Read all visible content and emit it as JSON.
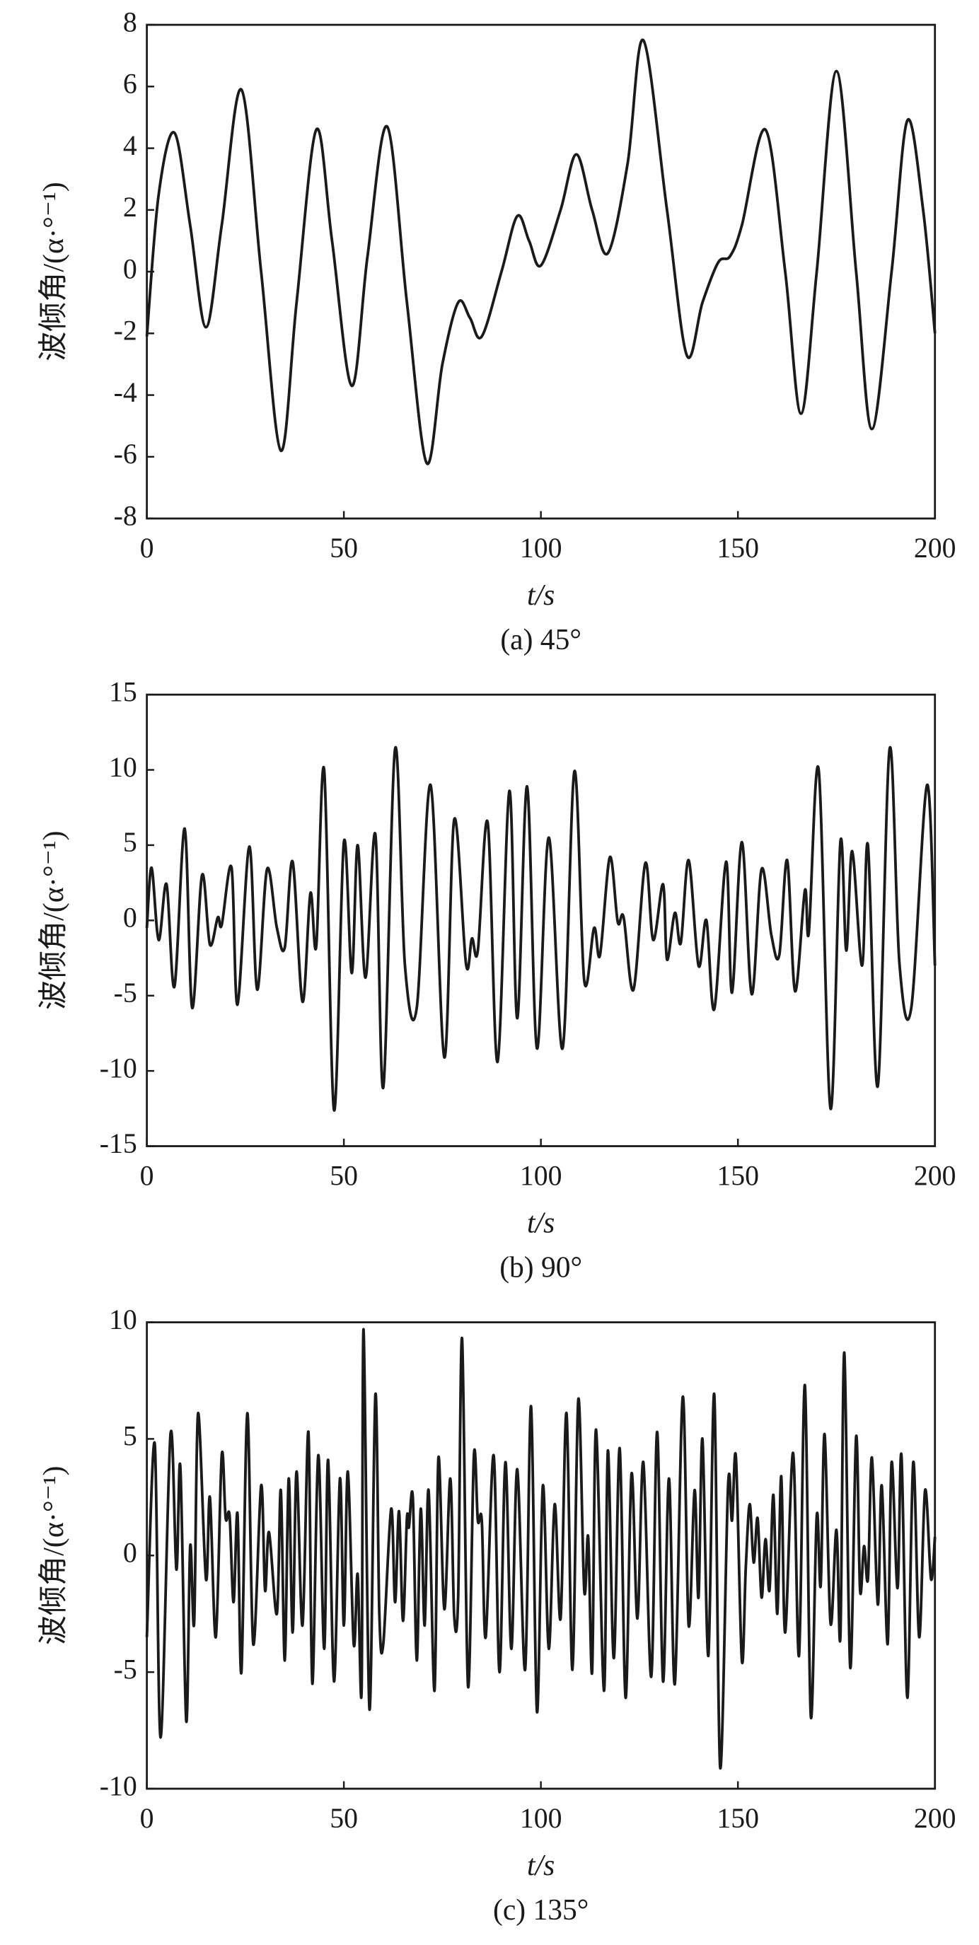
{
  "chart_data": [
    {
      "type": "line",
      "title": "(a) 45°",
      "x_label": "t/s",
      "y_label": "波倾角/(α·°⁻¹)",
      "color": "#1a1a1a",
      "xlim": [
        0,
        200
      ],
      "ylim": [
        -8,
        8
      ],
      "xticks": [
        0,
        50,
        100,
        150,
        200
      ],
      "yticks": [
        -8,
        -6,
        -4,
        -2,
        0,
        2,
        4,
        6,
        8
      ],
      "x": [
        0,
        3,
        7,
        11,
        15,
        19,
        24,
        29,
        34,
        38,
        43,
        47,
        52,
        56,
        61,
        66,
        71,
        75,
        79,
        82,
        85,
        90,
        94,
        97,
        100,
        105,
        109,
        113,
        117,
        122,
        126,
        132,
        137,
        141,
        145,
        148,
        151,
        157,
        162,
        166,
        170,
        175,
        180,
        184,
        189,
        193,
        197,
        200
      ],
      "values": [
        -2.1,
        2.5,
        4.5,
        1.5,
        -1.8,
        1.5,
        5.9,
        0,
        -5.8,
        -1,
        4.6,
        1,
        -3.7,
        0.5,
        4.7,
        -1,
        -6.2,
        -3,
        -1.0,
        -1.5,
        -2.1,
        0,
        1.8,
        1.0,
        0.2,
        2,
        3.8,
        2,
        0.6,
        3.5,
        7.5,
        2,
        -2.7,
        -1,
        0.3,
        0.5,
        1.5,
        4.6,
        0,
        -4.6,
        0,
        6.5,
        0,
        -5.1,
        0,
        4.9,
        2,
        -2.0
      ]
    },
    {
      "type": "line",
      "title": "(b) 90°",
      "x_label": "t/s",
      "y_label": "波倾角/(α·°⁻¹)",
      "color": "#1a1a1a",
      "xlim": [
        0,
        200
      ],
      "ylim": [
        -15,
        15
      ],
      "xticks": [
        0,
        50,
        100,
        150,
        200
      ],
      "yticks": [
        -15,
        -10,
        -5,
        0,
        5,
        10,
        15
      ],
      "x": [
        0,
        1.2,
        3,
        5,
        7,
        9.6,
        11.5,
        14,
        16,
        18,
        19,
        21.5,
        23,
        26,
        28,
        30.5,
        33,
        35,
        37,
        39.5,
        41.5,
        43,
        45,
        47.5,
        50,
        52,
        53.5,
        55.5,
        58,
        60,
        63,
        65.5,
        68.5,
        72,
        75.5,
        78,
        81,
        82.5,
        84,
        86.5,
        89,
        92,
        94,
        96.5,
        99,
        102,
        105.5,
        108.5,
        111,
        113.5,
        115,
        117.5,
        119.5,
        121,
        123.5,
        126.5,
        128.5,
        131,
        132,
        134,
        135.5,
        137.5,
        140,
        142,
        144,
        147,
        148.5,
        151,
        153.5,
        156,
        158.5,
        160.5,
        162.5,
        164.5,
        167,
        168,
        170.5,
        173.5,
        176,
        177.5,
        179,
        181.5,
        183,
        185.5,
        188.5,
        191,
        194,
        198,
        200
      ],
      "values": [
        -0.5,
        3.5,
        -1.3,
        2.4,
        -4.4,
        6.1,
        -5.8,
        3,
        -1.6,
        0.2,
        -0.3,
        3.5,
        -5.6,
        4.9,
        -4.6,
        3.4,
        -0.5,
        -1.8,
        3.9,
        -5.4,
        1.8,
        -1.7,
        10,
        -12.6,
        5.2,
        -3.5,
        5,
        -3.8,
        5.7,
        -11.1,
        11.4,
        -3,
        -5.8,
        9,
        -9.1,
        6.7,
        -2.9,
        -1.2,
        -2,
        6.5,
        -9.4,
        8.6,
        -6.5,
        8.9,
        -8.5,
        5.5,
        -8.5,
        9.9,
        -4,
        -0.5,
        -2.3,
        4.2,
        -0.1,
        0.2,
        -4.6,
        3.8,
        -1.3,
        2.4,
        -2.6,
        0.5,
        -1.5,
        4,
        -3,
        0,
        -5.9,
        3.9,
        -4.8,
        5.2,
        -4.9,
        3.4,
        -1,
        -2.3,
        4,
        -4.7,
        2,
        -0.8,
        10,
        -12.5,
        5.2,
        -2,
        4.6,
        -3,
        5,
        -11,
        11.4,
        -2.9,
        -5.8,
        9,
        -3
      ]
    },
    {
      "type": "line",
      "title": "(c) 135°",
      "x_label": "t/s",
      "y_label": "波倾角/(α·°⁻¹)",
      "color": "#1a1a1a",
      "xlim": [
        0,
        200
      ],
      "ylim": [
        -10,
        10
      ],
      "xticks": [
        0,
        50,
        100,
        150,
        200
      ],
      "yticks": [
        -10,
        -5,
        0,
        5,
        10
      ],
      "x": [
        0,
        2,
        3.5,
        6,
        7.5,
        8.5,
        10,
        11,
        12,
        13,
        15,
        16,
        17.5,
        19,
        20,
        21,
        22,
        23,
        24,
        25.5,
        27,
        29,
        30,
        31,
        33,
        34,
        35,
        36,
        37,
        38,
        39.5,
        41,
        42,
        43.5,
        45,
        46,
        47.5,
        49,
        50,
        51,
        52.5,
        53.5,
        54.5,
        55,
        56.5,
        58,
        59,
        60,
        62,
        63,
        64,
        65,
        66,
        66.5,
        67.5,
        68.5,
        69.5,
        70.5,
        71.5,
        73,
        74,
        75.5,
        77,
        78,
        79,
        80,
        81.5,
        83,
        84,
        85,
        86,
        88,
        89.5,
        91,
        92.5,
        94,
        96,
        97.5,
        99,
        100.5,
        102,
        103.5,
        105,
        106.5,
        108,
        109.5,
        111,
        112,
        113,
        114,
        116,
        117,
        118.5,
        120,
        121.5,
        123,
        124.5,
        126,
        128,
        129.5,
        131,
        132.5,
        134,
        136,
        137.5,
        139,
        140,
        141,
        142.5,
        144,
        145.5,
        147.5,
        148.5,
        149.5,
        151,
        152,
        153,
        154,
        155,
        156,
        157,
        158,
        159,
        160,
        161,
        162,
        164,
        165.5,
        167,
        168.5,
        170,
        171,
        172,
        173.5,
        175,
        176,
        177,
        178.5,
        180,
        181,
        182,
        183,
        184,
        185.5,
        186.5,
        188,
        189,
        190.5,
        191.5,
        193,
        194.5,
        196,
        197.5,
        199,
        200
      ],
      "values": [
        -3.5,
        4.8,
        -7.8,
        5.2,
        -0.6,
        3.8,
        -7.1,
        0.4,
        -2.9,
        6.1,
        -1,
        2.5,
        -3.5,
        4.3,
        1.6,
        1.7,
        -2,
        1.8,
        -5,
        6.1,
        -3.8,
        3,
        -1.5,
        1,
        -2.5,
        2.8,
        -4.5,
        3.3,
        -3.3,
        3.6,
        -3,
        5.3,
        -5.5,
        4.3,
        -4,
        4.1,
        -5.4,
        3.3,
        -3,
        3.6,
        -3.8,
        -0.8,
        -5.8,
        9.7,
        -6.6,
        6.9,
        -2.5,
        -3.8,
        2,
        -2,
        1.9,
        -2.8,
        1.6,
        1.2,
        2.5,
        -4.5,
        2,
        -3,
        2.8,
        -5.8,
        4.2,
        -2.3,
        3.3,
        -2.6,
        -1.8,
        9.3,
        -5.6,
        4.3,
        1.5,
        1.5,
        -3.5,
        4.3,
        -5,
        4,
        -4,
        3.7,
        -4.9,
        6.4,
        -6.7,
        3,
        -4,
        2.2,
        -2.7,
        6.1,
        -4.9,
        6.7,
        -1.5,
        0.8,
        -5,
        5.4,
        -5.8,
        4.5,
        -4.4,
        4.6,
        -6.1,
        3.5,
        -2.7,
        4,
        -5.2,
        5.3,
        -5.4,
        3.3,
        -5.5,
        6.8,
        -3,
        2.8,
        -1.8,
        5,
        -4.3,
        6.9,
        -9.1,
        3,
        1.5,
        4.2,
        -4.5,
        -0.5,
        2.2,
        -0.3,
        1.6,
        -1.8,
        0.7,
        -1.5,
        2.6,
        -2.5,
        3.4,
        -3.3,
        4.4,
        -4.3,
        7.3,
        -6.9,
        1.7,
        -1.3,
        5.2,
        -2.9,
        1.1,
        -3.5,
        8.7,
        -4.8,
        5.1,
        -1.5,
        0.4,
        -1,
        4.2,
        -2.1,
        3,
        -3.8,
        4,
        -1.4,
        4.3,
        -6.1,
        4,
        -3.5,
        2.8,
        -1,
        0.8
      ]
    }
  ]
}
